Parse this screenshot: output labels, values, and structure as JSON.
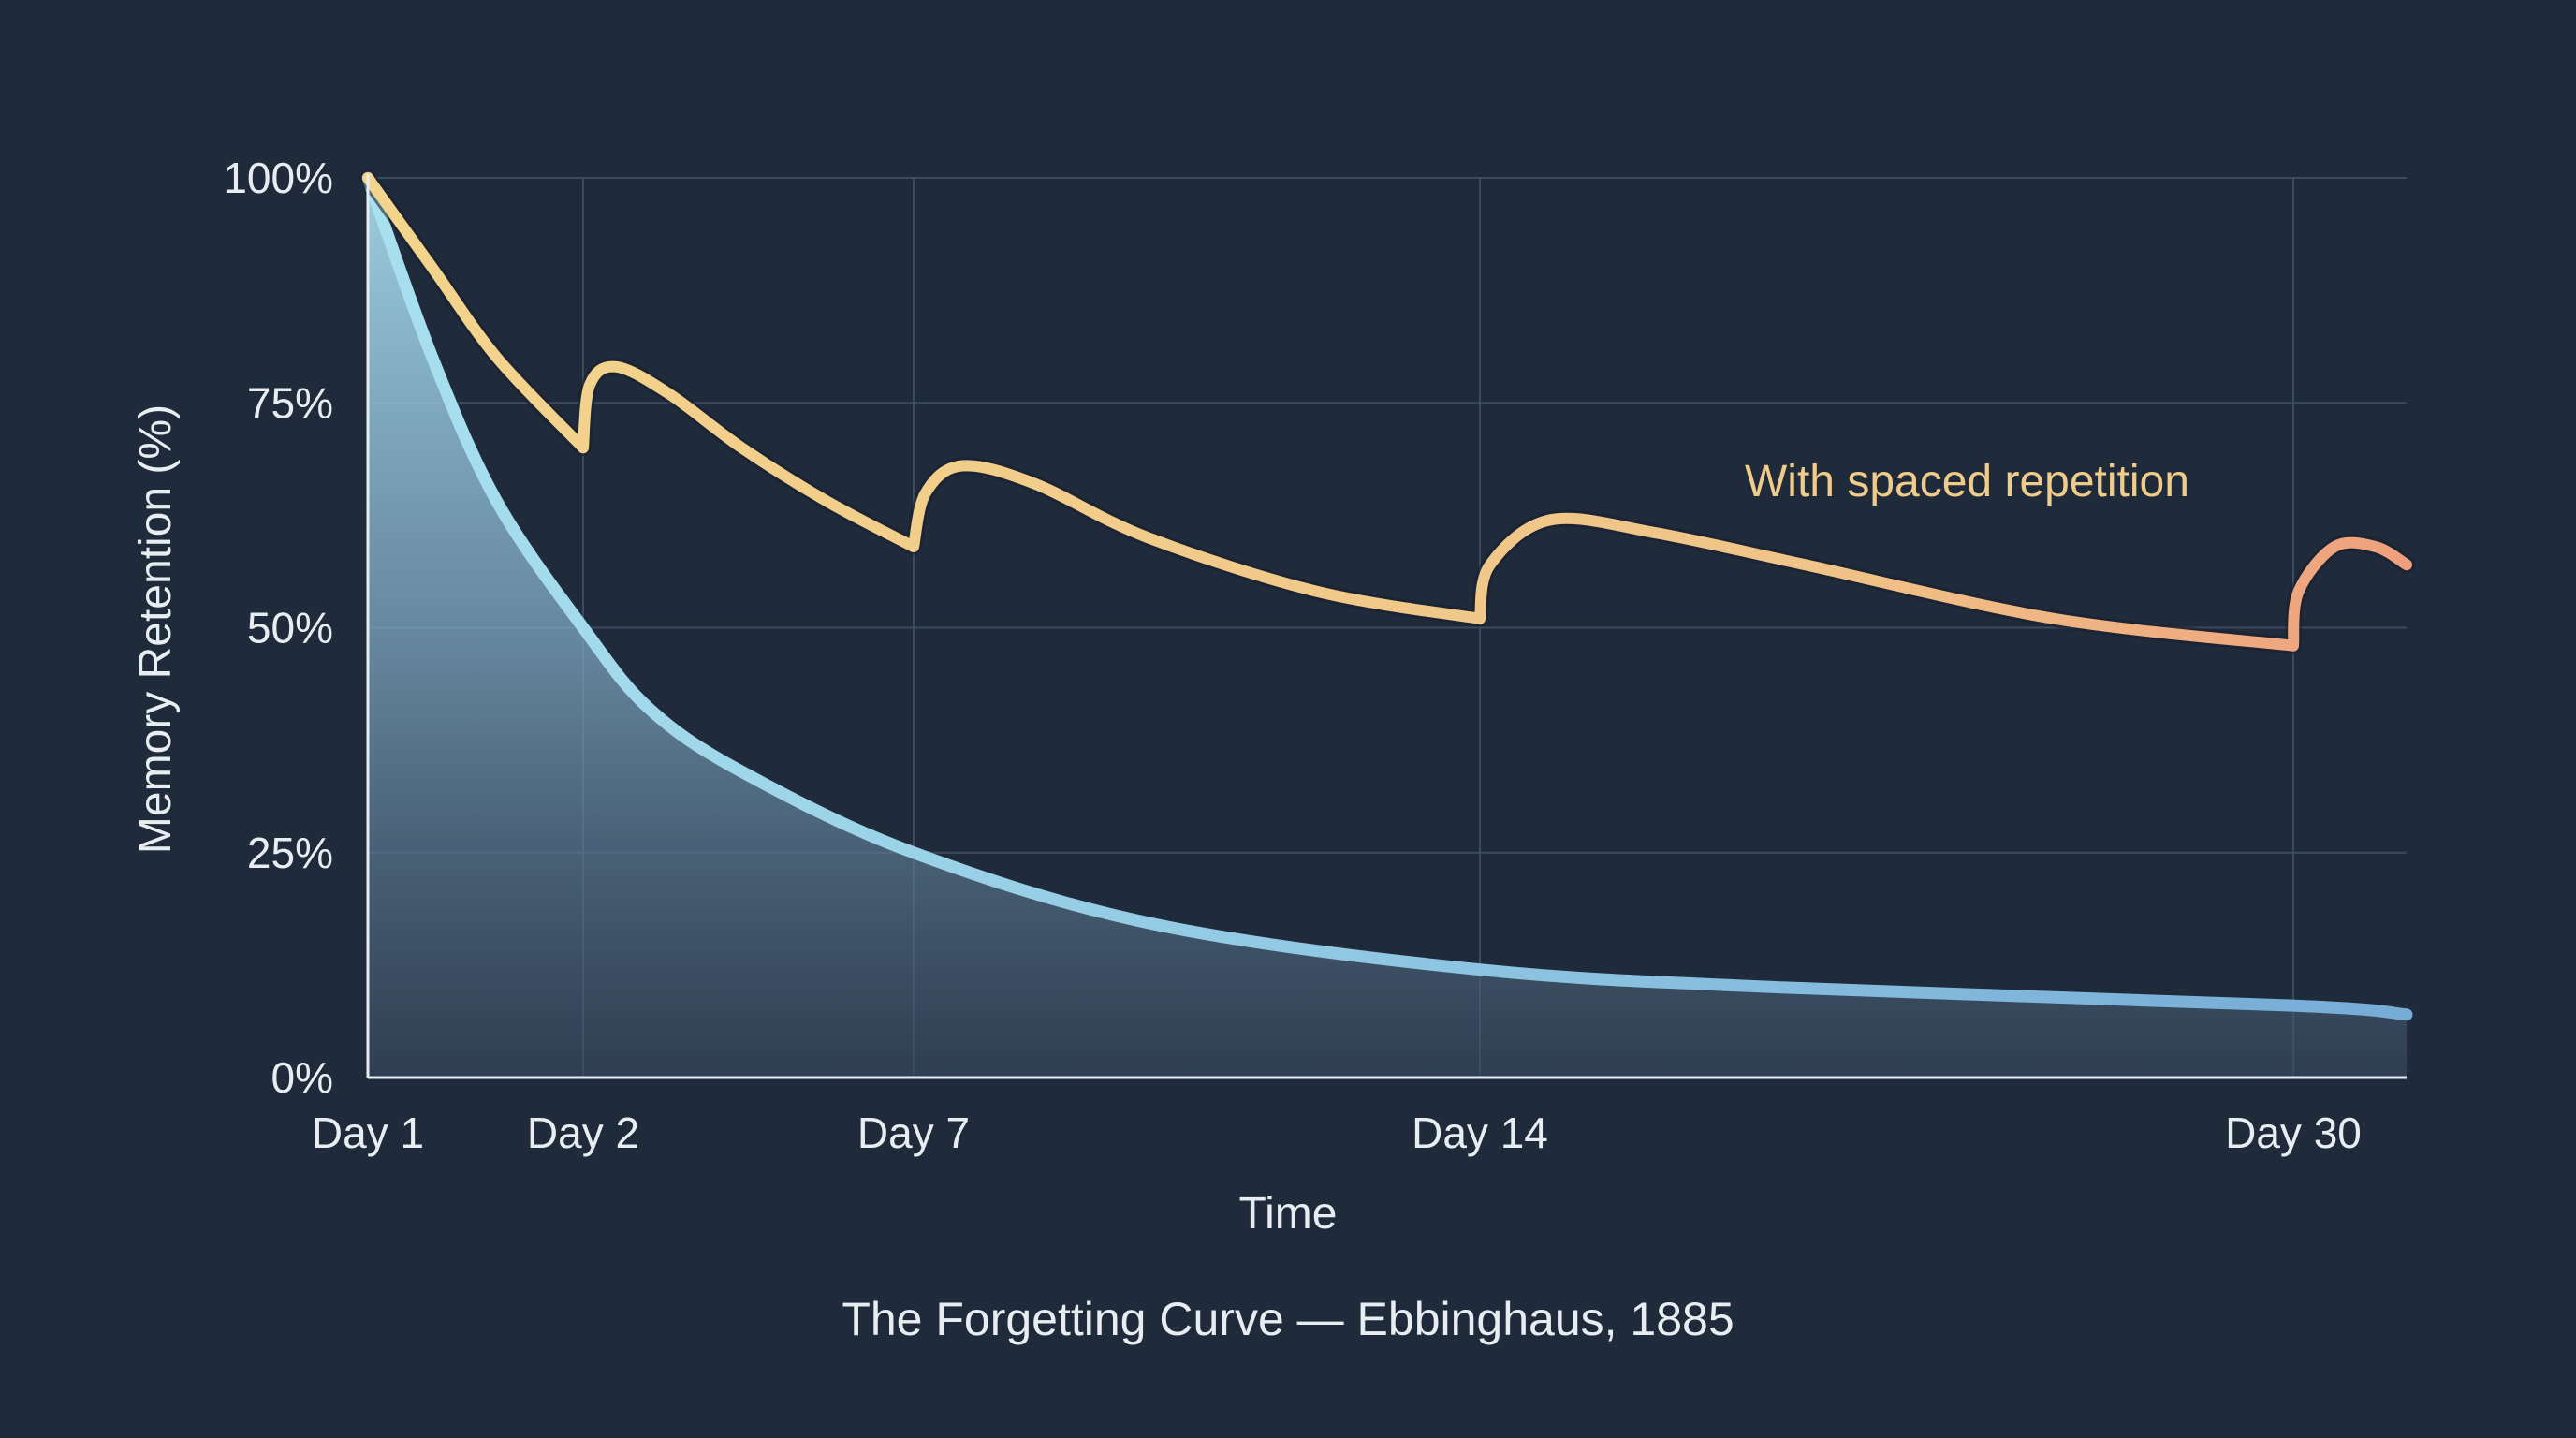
{
  "chart_data": {
    "type": "line",
    "title": "The Forgetting Curve — Ebbinghaus, 1885",
    "xlabel": "Time",
    "ylabel": "Memory Retention (%)",
    "x_ticks": [
      {
        "label": "Day 1",
        "day": 1
      },
      {
        "label": "Day 2",
        "day": 2
      },
      {
        "label": "Day 7",
        "day": 7
      },
      {
        "label": "Day 14",
        "day": 14
      },
      {
        "label": "Day 30",
        "day": 30
      }
    ],
    "x_scale": "nonlinear (ticks at Day 1, 2, 7, 14, 30)",
    "xlim": [
      1,
      32.2
    ],
    "y_ticks": [
      {
        "label": "0%",
        "value": 0
      },
      {
        "label": "25%",
        "value": 25
      },
      {
        "label": "50%",
        "value": 50
      },
      {
        "label": "75%",
        "value": 75
      },
      {
        "label": "100%",
        "value": 100
      }
    ],
    "ylim": [
      0,
      100
    ],
    "grid": true,
    "series": [
      {
        "color": "#8fd0e6",
        "fill": "gradient-area",
        "points": [
          [
            1,
            100
          ],
          [
            1.3,
            80
          ],
          [
            1.6,
            64
          ],
          [
            2,
            50
          ],
          [
            3,
            41
          ],
          [
            4.4,
            34
          ],
          [
            7,
            25
          ],
          [
            10,
            17
          ],
          [
            14,
            12
          ],
          [
            20,
            10
          ],
          [
            30,
            8
          ],
          [
            32.2,
            7
          ]
        ]
      },
      {
        "name": "With spaced repetition",
        "color": "#f0cf8a",
        "end_color": "#eea37e",
        "points": [
          [
            1,
            100
          ],
          [
            1.3,
            90
          ],
          [
            1.6,
            80
          ],
          [
            2,
            70
          ],
          [
            2.1,
            77
          ],
          [
            2.5,
            79
          ],
          [
            3.3,
            76
          ],
          [
            4.4,
            70
          ],
          [
            5.7,
            64
          ],
          [
            7,
            59
          ],
          [
            7.15,
            65
          ],
          [
            7.6,
            68
          ],
          [
            8.5,
            66
          ],
          [
            9.9,
            60
          ],
          [
            12,
            54
          ],
          [
            14,
            51
          ],
          [
            14.2,
            57
          ],
          [
            15.4,
            62
          ],
          [
            17.5,
            60.5
          ],
          [
            20.4,
            57
          ],
          [
            25.3,
            51
          ],
          [
            30,
            48
          ],
          [
            30.1,
            54
          ],
          [
            30.8,
            59
          ],
          [
            31.6,
            59
          ],
          [
            32.2,
            57
          ]
        ]
      }
    ],
    "annotation": "With spaced repetition"
  }
}
